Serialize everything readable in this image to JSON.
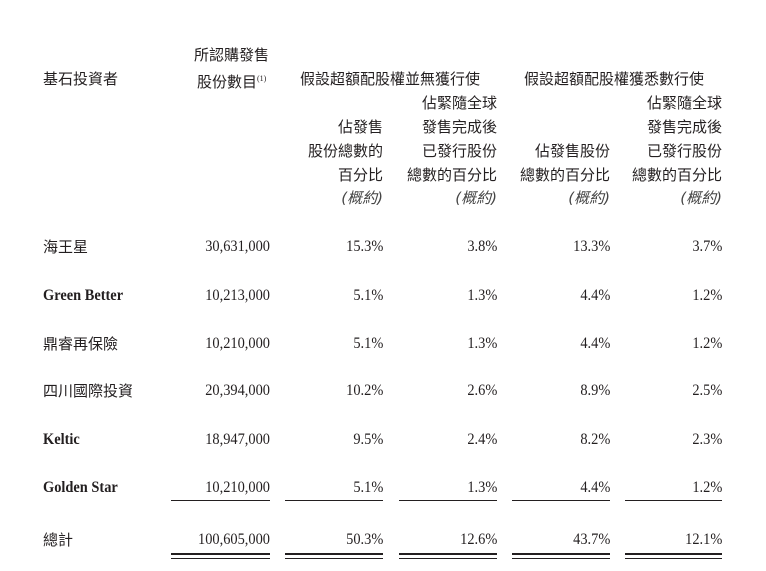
{
  "header": {
    "investor": "基石投資者",
    "shares_line1": "所認購發售",
    "shares_line2": "股份數目",
    "shares_note": "(1)",
    "group_no_exercise": "假設超額配股權並無獲行使",
    "group_full_exercise": "假設超額配股權獲悉數行使",
    "c2": [
      "佔發售",
      "股份總數的",
      "百分比",
      "(概約)"
    ],
    "c3": [
      "佔緊隨全球",
      "發售完成後",
      "已發行股份",
      "總數的百分比",
      "(概約)"
    ],
    "c4": [
      "佔發售股份",
      "總數的百分比",
      "(概約)"
    ],
    "c5": [
      "佔緊隨全球",
      "發售完成後",
      "已發行股份",
      "總數的百分比",
      "(概約)"
    ]
  },
  "rows": [
    {
      "name": "海王星",
      "shares": "30,631,000",
      "p1": "15.3%",
      "p2": "3.8%",
      "p3": "13.3%",
      "p4": "3.7%"
    },
    {
      "name": "Green Better",
      "shares": "10,213,000",
      "p1": "5.1%",
      "p2": "1.3%",
      "p3": "4.4%",
      "p4": "1.2%"
    },
    {
      "name": "鼎睿再保險",
      "shares": "10,210,000",
      "p1": "5.1%",
      "p2": "1.3%",
      "p3": "4.4%",
      "p4": "1.2%"
    },
    {
      "name": "四川國際投資",
      "shares": "20,394,000",
      "p1": "10.2%",
      "p2": "2.6%",
      "p3": "8.9%",
      "p4": "2.5%"
    },
    {
      "name": "Keltic",
      "shares": "18,947,000",
      "p1": "9.5%",
      "p2": "2.4%",
      "p3": "8.2%",
      "p4": "2.3%"
    },
    {
      "name": "Golden Star",
      "shares": "10,210,000",
      "p1": "5.1%",
      "p2": "1.3%",
      "p3": "4.4%",
      "p4": "1.2%"
    }
  ],
  "total": {
    "name": "總計",
    "shares": "100,605,000",
    "p1": "50.3%",
    "p2": "12.6%",
    "p3": "43.7%",
    "p4": "12.1%"
  }
}
